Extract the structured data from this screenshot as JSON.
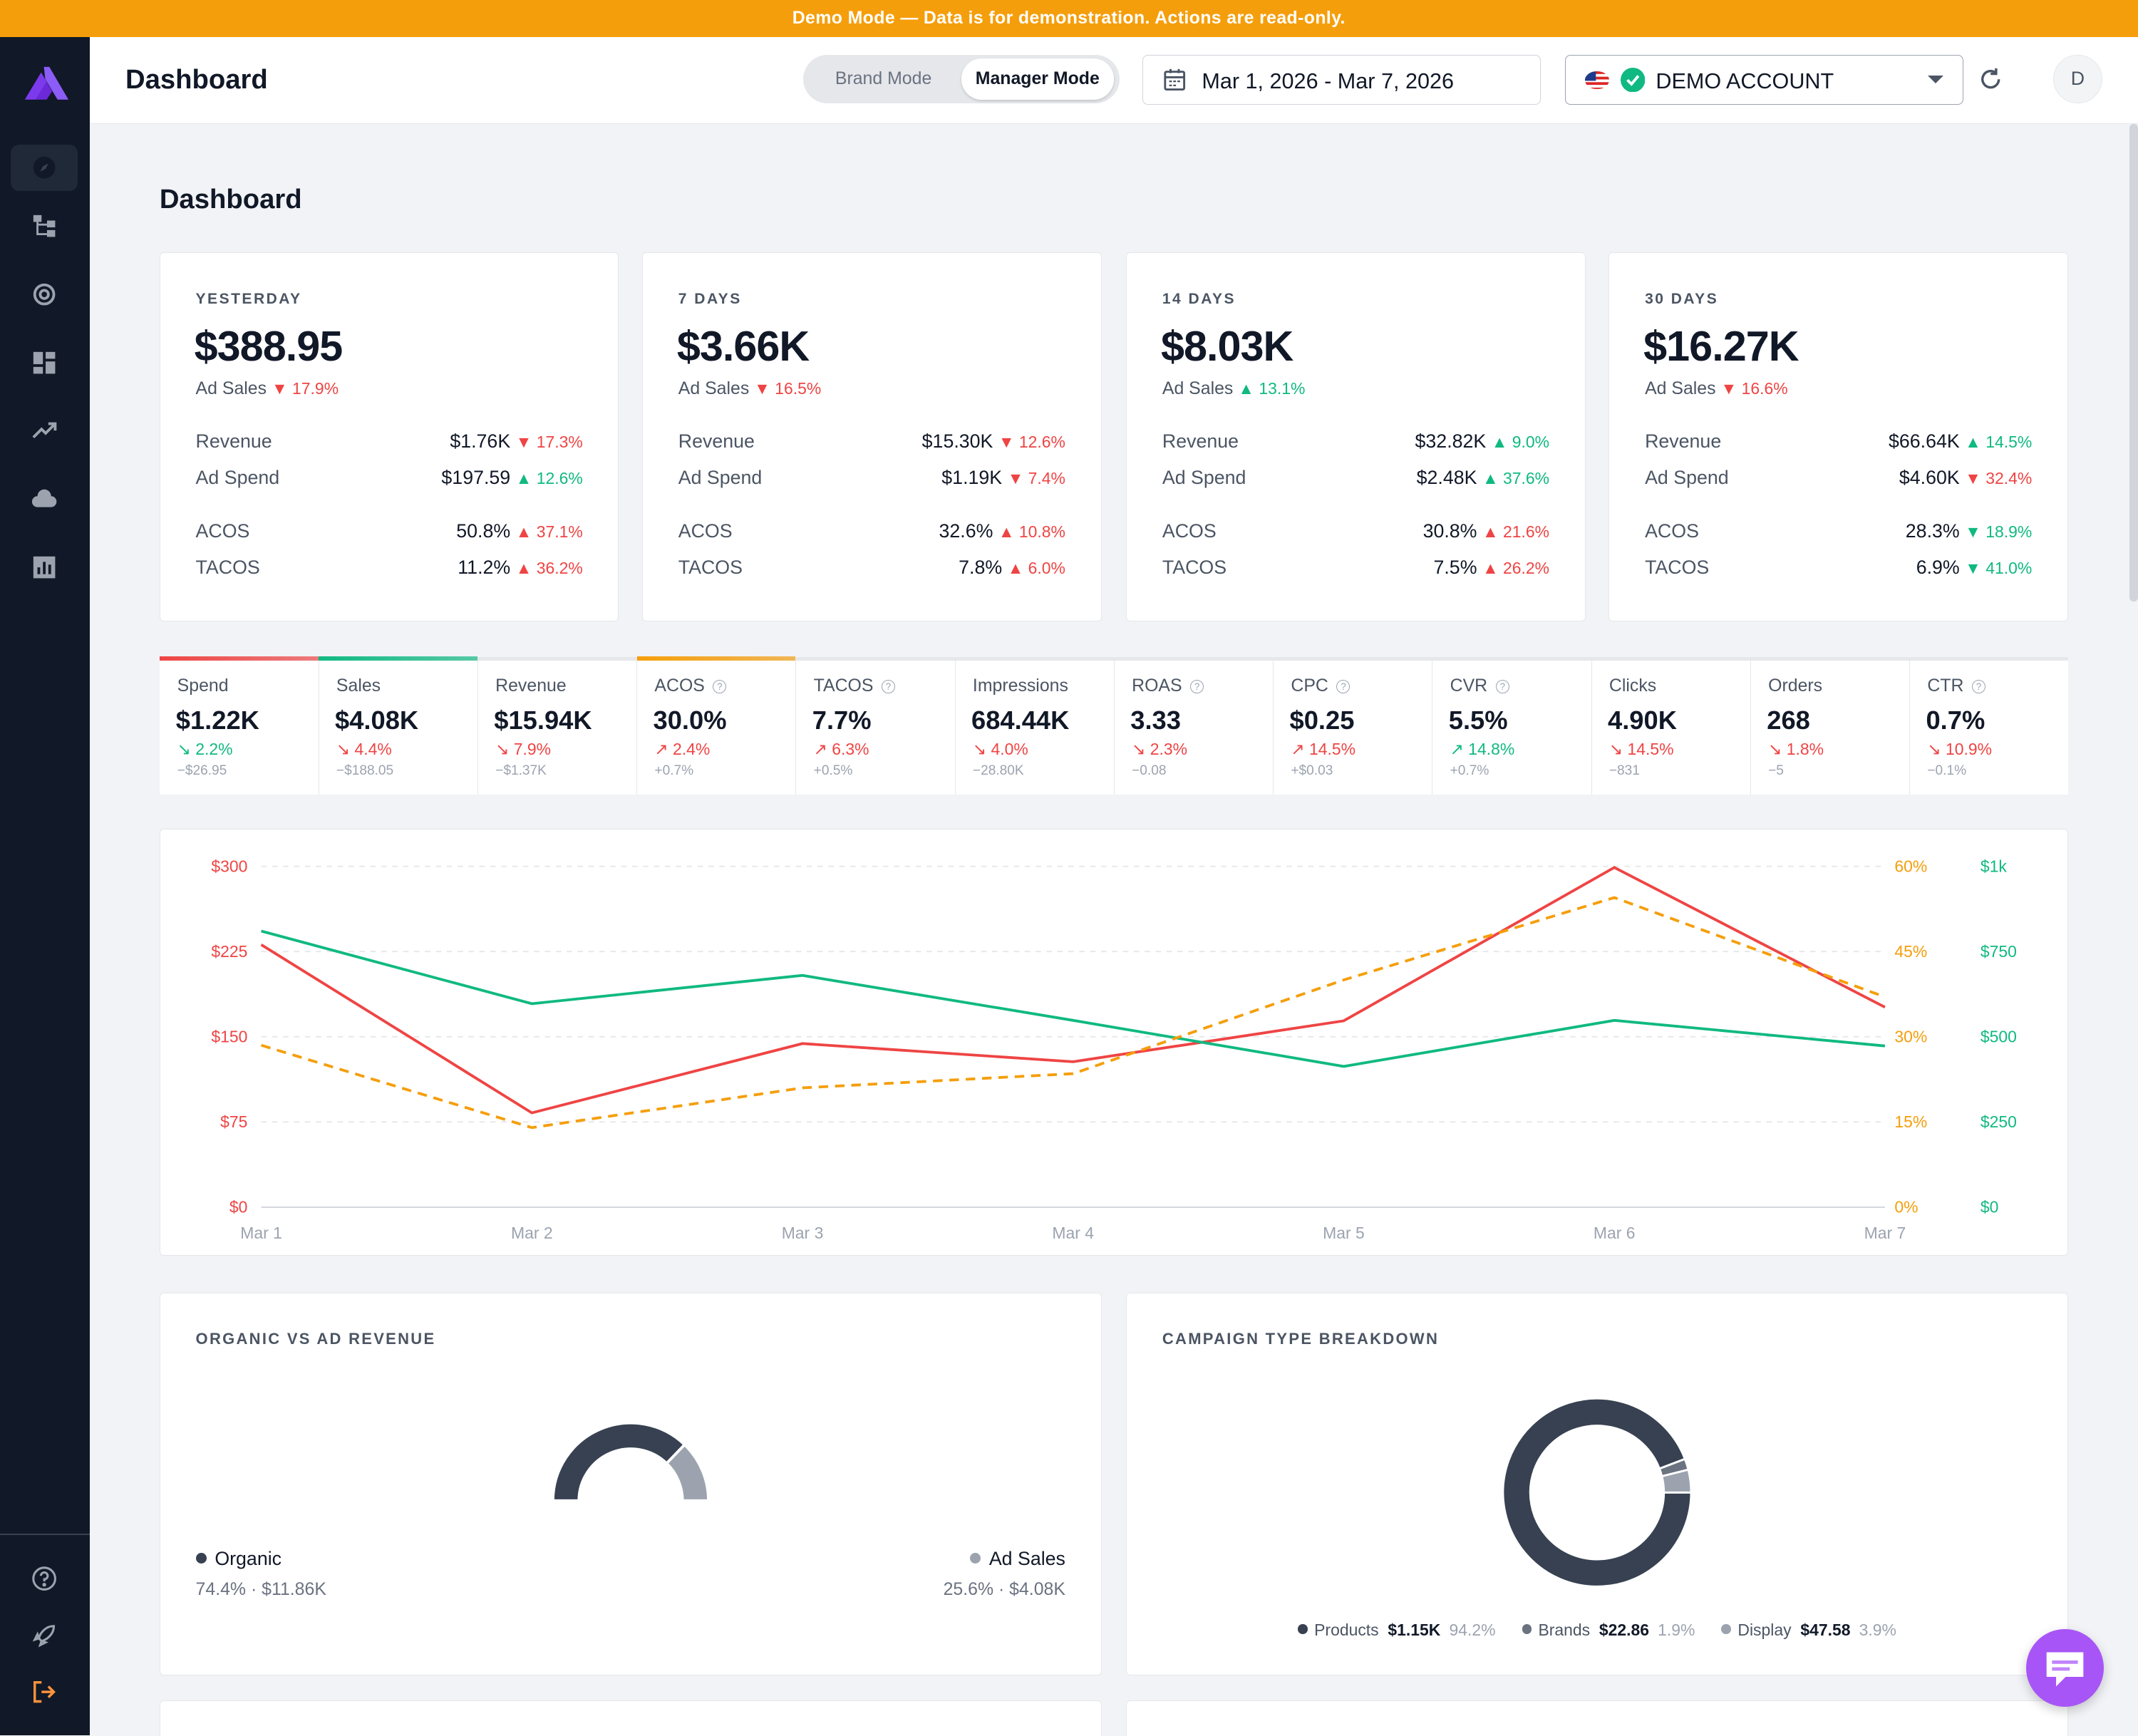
{
  "banner": {
    "text": "Demo Mode — Data is for demonstration. Actions are read-only."
  },
  "sidebar": {
    "items": [
      "compass-icon",
      "hierarchy-icon",
      "target-icon",
      "dashboard-icon",
      "trending-icon",
      "cloud-icon",
      "bar-chart-icon"
    ],
    "bottom": [
      "help-icon",
      "rocket-icon",
      "logout-icon"
    ]
  },
  "header": {
    "title": "Dashboard",
    "mode_brand": "Brand Mode",
    "mode_manager": "Manager Mode",
    "date_range": "Mar 1, 2026 - Mar 7, 2026",
    "account": "DEMO ACCOUNT",
    "avatar": "D"
  },
  "page": {
    "title": "Dashboard"
  },
  "summary_cards": [
    {
      "period": "YESTERDAY",
      "ad_sales": "$388.95",
      "ad_sales_label": "Ad Sales",
      "ad_sales_change": "17.9%",
      "ad_sales_dir": "down",
      "revenue_label": "Revenue",
      "revenue": "$1.76K",
      "revenue_change": "17.3%",
      "revenue_dir": "down",
      "spend_label": "Ad Spend",
      "spend": "$197.59",
      "spend_change": "12.6%",
      "spend_dir": "up",
      "acos_label": "ACOS",
      "acos": "50.8%",
      "acos_change": "37.1%",
      "acos_dir": "up-bad",
      "tacos_label": "TACOS",
      "tacos": "11.2%",
      "tacos_change": "36.2%",
      "tacos_dir": "up-bad"
    },
    {
      "period": "7 DAYS",
      "ad_sales": "$3.66K",
      "ad_sales_label": "Ad Sales",
      "ad_sales_change": "16.5%",
      "ad_sales_dir": "down",
      "revenue_label": "Revenue",
      "revenue": "$15.30K",
      "revenue_change": "12.6%",
      "revenue_dir": "down",
      "spend_label": "Ad Spend",
      "spend": "$1.19K",
      "spend_change": "7.4%",
      "spend_dir": "down",
      "acos_label": "ACOS",
      "acos": "32.6%",
      "acos_change": "10.8%",
      "acos_dir": "up-bad",
      "tacos_label": "TACOS",
      "tacos": "7.8%",
      "tacos_change": "6.0%",
      "tacos_dir": "up-bad"
    },
    {
      "period": "14 DAYS",
      "ad_sales": "$8.03K",
      "ad_sales_label": "Ad Sales",
      "ad_sales_change": "13.1%",
      "ad_sales_dir": "up",
      "revenue_label": "Revenue",
      "revenue": "$32.82K",
      "revenue_change": "9.0%",
      "revenue_dir": "up",
      "spend_label": "Ad Spend",
      "spend": "$2.48K",
      "spend_change": "37.6%",
      "spend_dir": "up",
      "acos_label": "ACOS",
      "acos": "30.8%",
      "acos_change": "21.6%",
      "acos_dir": "up-bad",
      "tacos_label": "TACOS",
      "tacos": "7.5%",
      "tacos_change": "26.2%",
      "tacos_dir": "up-bad"
    },
    {
      "period": "30 DAYS",
      "ad_sales": "$16.27K",
      "ad_sales_label": "Ad Sales",
      "ad_sales_change": "16.6%",
      "ad_sales_dir": "down",
      "revenue_label": "Revenue",
      "revenue": "$66.64K",
      "revenue_change": "14.5%",
      "revenue_dir": "up",
      "spend_label": "Ad Spend",
      "spend": "$4.60K",
      "spend_change": "32.4%",
      "spend_dir": "down",
      "acos_label": "ACOS",
      "acos": "28.3%",
      "acos_change": "18.9%",
      "acos_dir": "down-good",
      "tacos_label": "TACOS",
      "tacos": "6.9%",
      "tacos_change": "41.0%",
      "tacos_dir": "down-good"
    }
  ],
  "metrics": [
    {
      "label": "Spend",
      "value": "$1.22K",
      "change": "2.2%",
      "trend": "down",
      "color": "green",
      "abs": "−$26.95",
      "accent": "#ef4444",
      "help": false
    },
    {
      "label": "Sales",
      "value": "$4.08K",
      "change": "4.4%",
      "trend": "down",
      "color": "red",
      "abs": "−$188.05",
      "accent": "#10b981",
      "help": false
    },
    {
      "label": "Revenue",
      "value": "$15.94K",
      "change": "7.9%",
      "trend": "down",
      "color": "red",
      "abs": "−$1.37K",
      "accent": "",
      "help": false
    },
    {
      "label": "ACOS",
      "value": "30.0%",
      "change": "2.4%",
      "trend": "up",
      "color": "red",
      "abs": "+0.7%",
      "accent": "#f59e0b",
      "help": true
    },
    {
      "label": "TACOS",
      "value": "7.7%",
      "change": "6.3%",
      "trend": "up",
      "color": "red",
      "abs": "+0.5%",
      "accent": "",
      "help": true
    },
    {
      "label": "Impressions",
      "value": "684.44K",
      "change": "4.0%",
      "trend": "down",
      "color": "red",
      "abs": "−28.80K",
      "accent": "",
      "help": false
    },
    {
      "label": "ROAS",
      "value": "3.33",
      "change": "2.3%",
      "trend": "down",
      "color": "red",
      "abs": "−0.08",
      "accent": "",
      "help": true
    },
    {
      "label": "CPC",
      "value": "$0.25",
      "change": "14.5%",
      "trend": "up",
      "color": "red",
      "abs": "+$0.03",
      "accent": "",
      "help": true
    },
    {
      "label": "CVR",
      "value": "5.5%",
      "change": "14.8%",
      "trend": "up",
      "color": "green",
      "abs": "+0.7%",
      "accent": "",
      "help": true
    },
    {
      "label": "Clicks",
      "value": "4.90K",
      "change": "14.5%",
      "trend": "down",
      "color": "red",
      "abs": "−831",
      "accent": "",
      "help": false
    },
    {
      "label": "Orders",
      "value": "268",
      "change": "1.8%",
      "trend": "down",
      "color": "red",
      "abs": "−5",
      "accent": "",
      "help": false
    },
    {
      "label": "CTR",
      "value": "0.7%",
      "change": "10.9%",
      "trend": "down",
      "color": "red",
      "abs": "−0.1%",
      "accent": "",
      "help": true
    }
  ],
  "chart_data": [
    {
      "type": "line",
      "x": [
        "Mar 1",
        "Mar 2",
        "Mar 3",
        "Mar 4",
        "Mar 5",
        "Mar 6",
        "Mar 7"
      ],
      "axes": {
        "left": {
          "ticks": [
            "$0",
            "$75",
            "$150",
            "$225",
            "$300"
          ],
          "ylim": [
            0,
            300
          ],
          "color": "#ef4444"
        },
        "right_pct": {
          "ticks": [
            "0%",
            "15%",
            "30%",
            "45%",
            "60%"
          ],
          "ylim": [
            0,
            60
          ],
          "color": "#f59e0b"
        },
        "right_usd": {
          "ticks": [
            "$0",
            "$250",
            "$500",
            "$750",
            "$1k"
          ],
          "ylim": [
            0,
            1000
          ],
          "color": "#10b981"
        }
      },
      "series": [
        {
          "axis": "left",
          "color": "#ef4444",
          "dashed": false,
          "values": [
            231,
            83,
            144,
            128,
            164,
            299,
            176
          ]
        },
        {
          "axis": "right_usd",
          "color": "#10b981",
          "dashed": false,
          "values": [
            810,
            597,
            680,
            548,
            413,
            548,
            473
          ]
        },
        {
          "axis": "right_pct",
          "color": "#f59e0b",
          "dashed": true,
          "values": [
            28.5,
            14,
            21,
            23.5,
            40,
            54.5,
            37
          ]
        }
      ],
      "grid": true
    },
    {
      "type": "pie",
      "title": "ORGANIC VS AD REVENUE",
      "slices": [
        {
          "name": "Organic",
          "percent": "74.4%",
          "value": "$11.86K",
          "share": 74.4,
          "color": "#374151"
        },
        {
          "name": "Ad Sales",
          "percent": "25.6%",
          "value": "$4.08K",
          "share": 25.6,
          "color": "#9ca3af"
        }
      ]
    },
    {
      "type": "pie",
      "title": "CAMPAIGN TYPE BREAKDOWN",
      "slices": [
        {
          "name": "Products",
          "value": "$1.15K",
          "percent": "94.2%",
          "share": 94.2,
          "color": "#374151"
        },
        {
          "name": "Brands",
          "value": "$22.86",
          "percent": "1.9%",
          "share": 1.9,
          "color": "#6b7280"
        },
        {
          "name": "Display",
          "value": "$47.58",
          "percent": "3.9%",
          "share": 3.9,
          "color": "#9ca3af"
        }
      ]
    }
  ],
  "colors": {
    "accent": "#f59e0b",
    "up": "#10b981",
    "down": "#ef4444",
    "sidebar": "#111827",
    "brand": "#7c3aed"
  }
}
